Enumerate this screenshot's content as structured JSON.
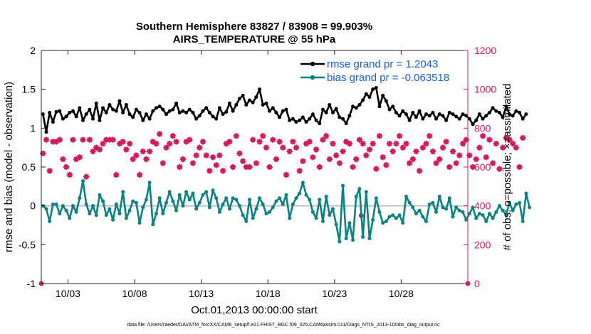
{
  "chart_data": {
    "type": "line",
    "title": "Southern Hemisphere 83827 / 83908 = 99.903%",
    "subtitle": "AIRS_TEMPERATURE @ 55 hPa",
    "xlabel": "Oct.01,2013 00:00:00 start",
    "ylabel_left": "rmse and bias (model - observation)",
    "ylabel_right": "# of obs: o=possible; ×=assimilated",
    "footnote": "data file: /Users/raeder/DAI/ATM_forcXX/CAM6_setup/f.e21.FHIST_BGC.f09_025.CAM6assim.011/Diags_NTrS_2013-10/obs_diag_output.nc",
    "x_range": [
      1,
      33
    ],
    "x_ticks": [
      3,
      8,
      13,
      18,
      23,
      28
    ],
    "x_tick_labels": [
      "10/03",
      "10/08",
      "10/13",
      "10/18",
      "10/23",
      "10/28"
    ],
    "y_left_range": [
      -1,
      2
    ],
    "y_left_ticks": [
      -1,
      -0.5,
      0,
      0.5,
      1,
      1.5,
      2
    ],
    "y_left_tick_labels": [
      "-1",
      "-0.5",
      "0",
      "0.5",
      "1",
      "1.5",
      "2"
    ],
    "y_right_range": [
      0,
      1200
    ],
    "y_right_ticks": [
      0,
      200,
      400,
      600,
      800,
      1000,
      1200
    ],
    "y_right_tick_labels": [
      "0",
      "200",
      "400",
      "600",
      "800",
      "1000",
      "1200"
    ],
    "x_step_days": 0.25,
    "legend_position": "top-right",
    "colors": {
      "rmse": "#000000",
      "bias": "#0a8283",
      "obs": "#d6195a",
      "zero": "#bbbbbb"
    },
    "series": [
      {
        "name": "rmse grand pr = 1.2043",
        "values": [
          1.18,
          0.95,
          1.2,
          1.08,
          1.21,
          1.22,
          1.12,
          1.15,
          1.2,
          1.22,
          1.15,
          1.26,
          1.1,
          1.18,
          1.24,
          1.12,
          1.32,
          1.1,
          1.26,
          1.2,
          1.3,
          1.24,
          1.22,
          1.35,
          1.2,
          1.3,
          1.18,
          1.14,
          1.24,
          1.2,
          1.1,
          1.18,
          1.12,
          1.22,
          1.26,
          1.28,
          1.24,
          1.18,
          1.22,
          1.24,
          1.32,
          1.2,
          1.22,
          1.2,
          1.24,
          1.2,
          1.12,
          1.16,
          1.22,
          1.26,
          1.2,
          1.15,
          1.12,
          1.26,
          1.18,
          1.21,
          1.32,
          1.22,
          1.3,
          1.38,
          1.42,
          1.3,
          1.36,
          1.33,
          1.4,
          1.5,
          1.3,
          1.32,
          1.22,
          1.26,
          1.2,
          1.14,
          1.22,
          1.24,
          1.1,
          1.12,
          1.08,
          1.1,
          1.14,
          1.08,
          1.12,
          1.18,
          1.1,
          1.06,
          1.24,
          1.2,
          1.3,
          1.2,
          1.25,
          1.14,
          1.12,
          1.06,
          1.16,
          1.28,
          1.26,
          1.3,
          1.36,
          1.44,
          1.4,
          1.5,
          1.52,
          1.28,
          1.42,
          1.35,
          1.24,
          1.28,
          1.2,
          1.16,
          1.22,
          1.18,
          1.1,
          1.2,
          1.14,
          1.22,
          1.12,
          1.18,
          1.16,
          1.2,
          1.12,
          1.18,
          1.16,
          1.1,
          1.2,
          1.18,
          1.15,
          1.12,
          1.18,
          1.16,
          1.12,
          1.05,
          1.1,
          1.18,
          1.12,
          1.16,
          1.2,
          1.26,
          1.22,
          1.2,
          1.14,
          1.28,
          1.18,
          1.16,
          1.22,
          1.2,
          1.12,
          1.18
        ]
      },
      {
        "name": "bias grand pr = -0.063518",
        "values": [
          0,
          -0.04,
          -0.2,
          0.02,
          0.02,
          -0.1,
          0,
          -0.06,
          -0.16,
          0,
          -0.08,
          0.1,
          0.32,
          0.02,
          -0.1,
          0,
          -0.12,
          0.14,
          0.06,
          -0.12,
          -0.04,
          -0.18,
          0.02,
          -0.1,
          0.18,
          -0.16,
          -0.06,
          0.06,
          0.04,
          -0.22,
          -0.02,
          0.08,
          0.3,
          -0.24,
          -0.1,
          0.1,
          -0.1,
          0.04,
          0.18,
          0.06,
          -0.06,
          0.14,
          0,
          0.18,
          0.08,
          0.16,
          -0.04,
          0.04,
          0.14,
          0.18,
          -0.02,
          0.2,
          0.1,
          -0.08,
          0.02,
          0.1,
          -0.04,
          0.1,
          0.08,
          0,
          -0.12,
          -0.2,
          0.08,
          -0.16,
          -0.04,
          0.1,
          0.02,
          -0.1,
          -0.08,
          -0.02,
          0.06,
          0.1,
          0.02,
          0.14,
          -0.16,
          0.02,
          0.1,
          0.16,
          0.3,
          0.14,
          0.08,
          -0.08,
          -0.16,
          0.08,
          -0.2,
          0.12,
          -0.12,
          -0.04,
          -0.24,
          -0.46,
          0.26,
          -0.42,
          -0.22,
          -0.44,
          0.12,
          0.22,
          -0.4,
          0.18,
          -0.42,
          -0.18,
          0.1,
          -0.08,
          -0.22,
          -0.2,
          -0.14,
          -0.12,
          -0.16,
          -0.12,
          -0.22,
          0.12,
          0.04,
          -0.02,
          -0.1,
          -0.06,
          -0.14,
          -0.2,
          0.02,
          0.04,
          -0.08,
          0.12,
          -0.02,
          -0.04,
          0.1,
          -0.14,
          -0.02,
          -0.06,
          -0.08,
          -0.18,
          -0.1,
          -0.02,
          -0.16,
          -0.1,
          -0.12,
          -0.2,
          -0.1,
          -0.16,
          -0.08,
          0,
          -0.06,
          -0.12,
          0.04,
          -0.06,
          0.02,
          0.04,
          -0.2,
          0.16,
          -0.02
        ]
      }
    ],
    "obs_assimilated": [
      670,
      740,
      580,
      730,
      730,
      740,
      640,
      600,
      560,
      740,
      640,
      650,
      740,
      550,
      740,
      680,
      700,
      690,
      720,
      740,
      740,
      740,
      560,
      720,
      730,
      690,
      720,
      640,
      660,
      560,
      680,
      640,
      680,
      730,
      720,
      770,
      620,
      700,
      720,
      760,
      730,
      600,
      640,
      730,
      740,
      620,
      660,
      700,
      730,
      660,
      580,
      650,
      610,
      660,
      580,
      720,
      730,
      600,
      760,
      670,
      630,
      600,
      600,
      740,
      620,
      730,
      760,
      700,
      600,
      740,
      640,
      730,
      700,
      560,
      680,
      730,
      700,
      580,
      630,
      720,
      730,
      650,
      690,
      600,
      740,
      760,
      640,
      720,
      660,
      620,
      680,
      730,
      720,
      600,
      640,
      740,
      720,
      660,
      690,
      720,
      590,
      760,
      650,
      610,
      720,
      680,
      720,
      760,
      700,
      720,
      620,
      640,
      680,
      580,
      700,
      720,
      760,
      680,
      620,
      640,
      700,
      730,
      600,
      680,
      620,
      660,
      720,
      740,
      660,
      600,
      640,
      700,
      760,
      650,
      740,
      620,
      720,
      590,
      700,
      750,
      740,
      720,
      700,
      600,
      750
    ],
    "obs_possible_isolated": [
      {
        "x": 1.0,
        "y": 0
      },
      {
        "x": 25.0,
        "y": 350
      },
      {
        "x": 33.0,
        "y": 0
      }
    ]
  }
}
